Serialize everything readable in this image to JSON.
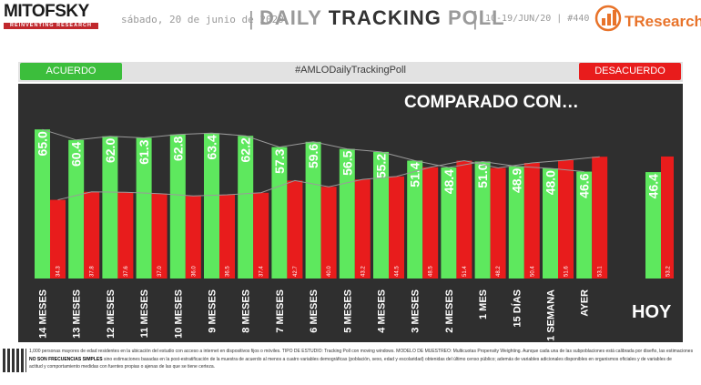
{
  "header": {
    "brand": "MITOFSKY",
    "brand_sub": "REINVENTING RESEARCH",
    "date": "sábado, 20 de junio de 2020",
    "title_prefix": "DAILY",
    "title_main": "TRACKING",
    "title_suffix": "POLL",
    "range": "10-19/JUN/20  |  #440",
    "partner": "TResearch"
  },
  "legend": {
    "left": "ACUERDO",
    "hashtag": "#AMLODailyTrackingPoll",
    "right": "DESACUERDO"
  },
  "chart_data": {
    "type": "bar",
    "title": "COMPARADO CON…",
    "categories": [
      "14 MESES",
      "13 MESES",
      "12 MESES",
      "11 MESES",
      "10 MESES",
      "9 MESES",
      "8 MESES",
      "7 MESES",
      "6 MESES",
      "5 MESES",
      "4 MESES",
      "3 MESES",
      "2 MESES",
      "1 MES",
      "15 DÍAS",
      "1 SEMANA",
      "AYER"
    ],
    "series": [
      {
        "name": "ACUERDO",
        "color": "#5ee85e",
        "values": [
          65.0,
          60.4,
          62.0,
          61.3,
          62.8,
          63.4,
          62.2,
          57.3,
          59.6,
          56.5,
          55.2,
          51.4,
          48.4,
          51.0,
          48.9,
          48.0,
          46.6
        ]
      },
      {
        "name": "DESACUERDO",
        "color": "#e81c1c",
        "values": [
          34.3,
          37.8,
          37.6,
          37.0,
          36.0,
          36.5,
          37.4,
          42.7,
          40.0,
          43.2,
          44.5,
          48.5,
          51.4,
          48.2,
          50.4,
          51.6,
          53.1
        ]
      }
    ],
    "today": {
      "label": "HOY",
      "acuerdo": 46.4,
      "desacuerdo": 53.2
    },
    "ylim": [
      0,
      70
    ],
    "grid": false
  },
  "footer": {
    "line1": "1,000 personas mayores de edad residentes en la ubicación del estudio con acceso a internet en dispositivos fijos o móviles. TIPO DE ESTUDIO: Tracking Poll con moving windows. MODELO DE MUESTREO: Multicuotas Propensity Weighting. Aunque cada una de las subpoblaciones está calibrada por diseño, las estimaciones",
    "line2_bold": "NO SON FRECUENCIAS SIMPLES",
    "line2": " sino estimaciones basadas en la post-estratificación de la muestra de acuerdo al menos a cuatro variables demográficas (población, sexo, edad y escolaridad) obtenidas del último censo público; además de variables adicionales disponibles en organismos oficiales y de variables de",
    "line3": "actitud y comportamiento  medidas  con fuentes  propias o ajenas de las que se tiene certeza."
  }
}
